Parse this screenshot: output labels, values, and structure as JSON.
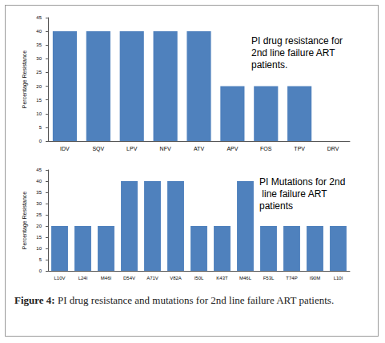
{
  "chart_data": [
    {
      "type": "bar",
      "title": "PI drug resistance for 2nd line failure ART patients.",
      "y_label": "Percentage Resistance",
      "categories": [
        "IDV",
        "SQV",
        "LPV",
        "NFV",
        "ATV",
        "APV",
        "FOS",
        "TPV",
        "DRV"
      ],
      "values": [
        40,
        40,
        40,
        40,
        40,
        20,
        20,
        20,
        0
      ],
      "color": "#4f81bd",
      "ylim": [
        0,
        45
      ],
      "yticks": [
        0,
        5,
        10,
        15,
        20,
        25,
        30,
        35,
        40,
        45
      ],
      "grid": false
    },
    {
      "type": "bar",
      "title": "PI Mutations for 2nd line failure ART patients",
      "y_label": "Percentage Resistance",
      "categories": [
        "L10V",
        "L24I",
        "M46I",
        "D54V",
        "A71V",
        "V82A",
        "I50L",
        "K43T",
        "M46L",
        "F53L",
        "T74P",
        "I90M",
        "L10I"
      ],
      "values": [
        20,
        20,
        20,
        40,
        40,
        40,
        20,
        20,
        40,
        20,
        20,
        20,
        20
      ],
      "color": "#4f81bd",
      "ylim": [
        0,
        45
      ],
      "yticks": [
        0,
        5,
        10,
        15,
        20,
        25,
        30,
        35,
        40,
        45
      ],
      "grid": false
    }
  ],
  "caption": {
    "label": "Figure 4:",
    "text": "PI drug resistance and mutations for 2nd line failure ART patients."
  }
}
